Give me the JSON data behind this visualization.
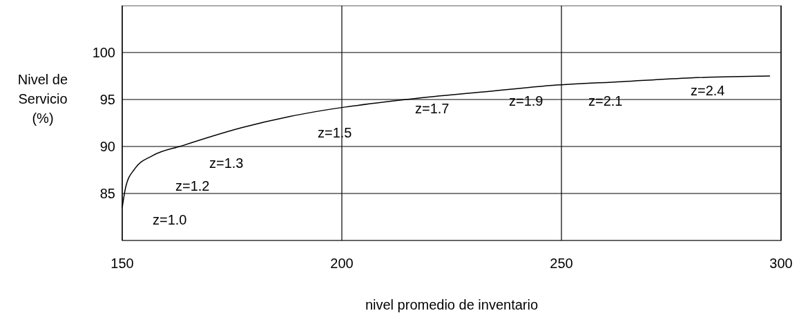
{
  "chart_data": {
    "type": "line",
    "xlabel": "nivel promedio de inventario",
    "ylabel": "Nivel de\nServicio\n(%)",
    "xlim": [
      150,
      300
    ],
    "xticks": [
      150,
      200,
      250,
      300
    ],
    "ylim": [
      80,
      105
    ],
    "yticks": [
      85,
      90,
      95,
      100
    ],
    "grid": true,
    "marker": "none",
    "line_style": "solid",
    "series": [
      {
        "color": "#000000",
        "x": [
          150,
          150.8,
          152.8,
          156.8,
          163.8,
          177.2,
          188.2,
          200.8,
          216.5,
          232.2,
          248,
          263.7,
          279.4,
          297.5
        ],
        "values": [
          83.5,
          85.7,
          87.6,
          89.0,
          90.1,
          92.0,
          93.2,
          94.2,
          95.1,
          95.8,
          96.5,
          96.9,
          97.3,
          97.5
        ]
      }
    ],
    "annotations": [
      "z=1.0",
      "z=1.2",
      "z=1.3",
      "z=1.5",
      "z=1.7",
      "z=1.9",
      "z=2.1",
      "z=2.4"
    ]
  }
}
